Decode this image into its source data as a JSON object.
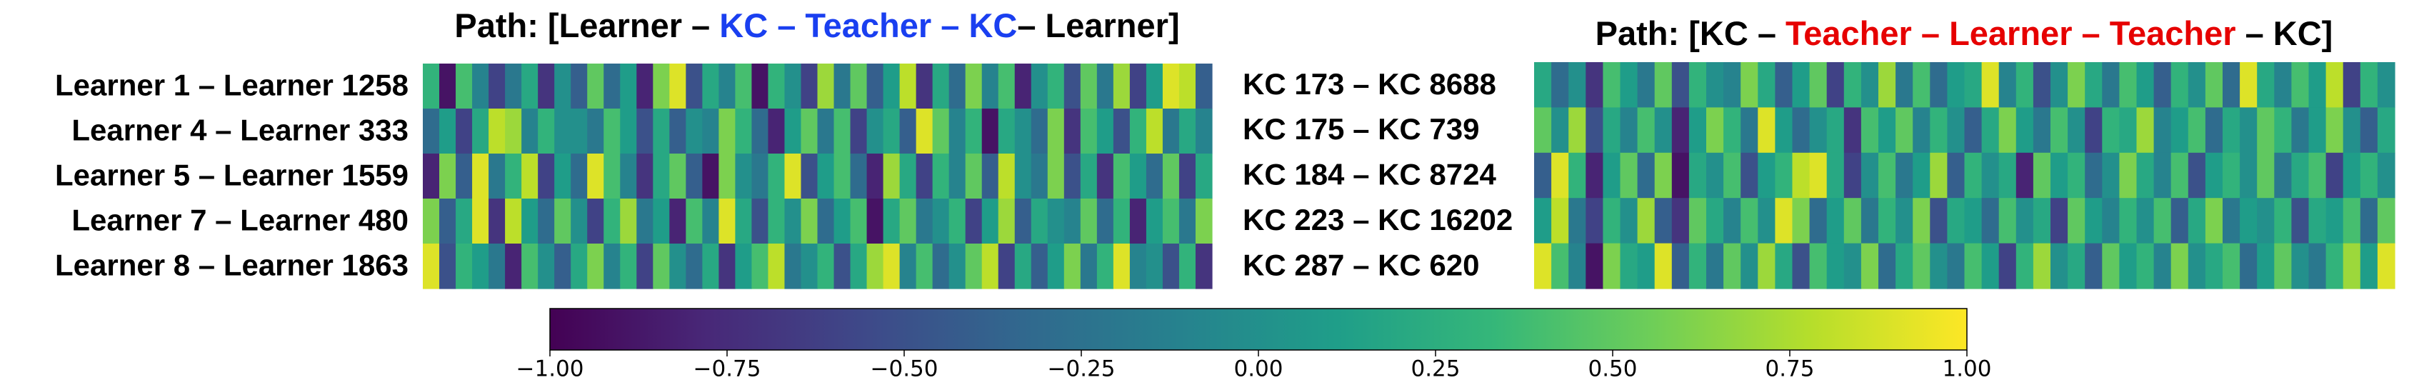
{
  "chart_data": [
    {
      "type": "heatmap",
      "title": [
        {
          "text": "Path: [Learner – ",
          "color": "#000000"
        },
        {
          "text": "KC – Teacher – KC",
          "color": "#1a3ff0"
        },
        {
          "text": "– Learner]",
          "color": "#000000"
        }
      ],
      "y_labels": [
        "Learner 1 – Learner 1258",
        "Learner 4 – Learner 333",
        "Learner 5 – Learner 1559",
        "Learner 7 – Learner 480",
        "Learner 8 – Learner 1863"
      ],
      "z": [
        [
          0.3,
          -0.9,
          0.4,
          -0.1,
          -0.6,
          -0.2,
          0.2,
          -0.7,
          0.0,
          -0.4,
          0.5,
          -0.3,
          0.1,
          -0.8,
          0.6,
          0.9,
          -0.5,
          0.2,
          -0.1,
          0.4,
          -0.9,
          0.3,
          0.0,
          -0.6,
          0.7,
          -0.2,
          0.5,
          -0.4,
          0.1,
          0.8,
          -0.7,
          0.2,
          -0.3,
          0.6,
          -0.1,
          0.4,
          -0.8,
          0.0,
          0.3,
          -0.5,
          0.5,
          -0.2,
          0.7,
          -0.6,
          0.1,
          0.9,
          0.8,
          -0.4
        ],
        [
          -0.3,
          0.1,
          -0.6,
          0.2,
          0.8,
          0.7,
          -0.1,
          0.3,
          0.0,
          0.0,
          -0.2,
          0.4,
          0.1,
          -0.5,
          0.2,
          -0.4,
          0.0,
          -0.1,
          0.6,
          0.3,
          -0.3,
          -0.8,
          0.1,
          0.5,
          -0.2,
          0.4,
          -0.6,
          0.0,
          0.2,
          -0.4,
          0.9,
          0.5,
          -0.1,
          0.3,
          -0.9,
          0.2,
          0.0,
          -0.3,
          0.6,
          -0.7,
          0.4,
          0.1,
          -0.5,
          0.3,
          0.8,
          -0.2,
          0.2,
          -0.1
        ],
        [
          -0.8,
          0.6,
          -0.4,
          0.9,
          -0.2,
          0.3,
          0.8,
          -0.6,
          0.1,
          -0.3,
          0.9,
          0.4,
          -0.1,
          -0.7,
          0.2,
          0.5,
          -0.4,
          -0.9,
          0.6,
          0.0,
          -0.2,
          0.3,
          0.9,
          -0.5,
          0.1,
          0.4,
          -0.3,
          -0.8,
          0.7,
          0.2,
          -0.6,
          0.3,
          -0.1,
          0.5,
          -0.4,
          0.8,
          0.0,
          -0.2,
          0.6,
          -0.5,
          0.2,
          -0.7,
          0.4,
          0.1,
          -0.3,
          0.5,
          -0.6,
          0.2
        ],
        [
          0.6,
          -0.4,
          0.2,
          0.9,
          -0.7,
          0.8,
          0.1,
          -0.3,
          0.5,
          0.0,
          -0.6,
          0.3,
          0.7,
          -0.2,
          0.1,
          -0.8,
          0.4,
          -0.1,
          0.9,
          0.2,
          -0.5,
          0.3,
          0.0,
          0.6,
          -0.3,
          0.1,
          0.4,
          -0.9,
          0.2,
          0.5,
          -0.2,
          0.0,
          0.3,
          -0.6,
          0.1,
          0.7,
          -0.4,
          0.2,
          0.0,
          -0.1,
          0.5,
          -0.3,
          0.3,
          -0.8,
          0.1,
          0.4,
          -0.2,
          0.6
        ],
        [
          0.9,
          -0.5,
          0.3,
          0.1,
          -0.2,
          -0.8,
          0.4,
          0.0,
          -0.4,
          0.2,
          0.6,
          -0.1,
          0.3,
          -0.6,
          0.5,
          0.0,
          -0.3,
          0.2,
          -0.7,
          0.1,
          0.4,
          0.8,
          -0.2,
          0.0,
          0.3,
          -0.5,
          0.2,
          0.7,
          0.9,
          -0.1,
          0.4,
          -0.3,
          0.0,
          0.5,
          0.8,
          -0.6,
          0.2,
          -0.4,
          0.1,
          0.6,
          -0.2,
          0.3,
          0.9,
          -0.1,
          0.0,
          -0.5,
          0.3,
          -0.7
        ]
      ],
      "zlim": [
        -1,
        1
      ],
      "colormap": "viridis"
    },
    {
      "type": "heatmap",
      "title": [
        {
          "text": "Path: [KC – ",
          "color": "#000000"
        },
        {
          "text": "Teacher – Learner – Teacher",
          "color": "#e60000"
        },
        {
          "text": " – KC]",
          "color": "#000000"
        }
      ],
      "y_labels": [
        "KC 173 – KC 8688",
        "KC 175 – KC 739",
        "KC 184 – KC 8724",
        "KC 223 – KC 16202",
        "KC 287 – KC 620"
      ],
      "z": [
        [
          0.2,
          -0.3,
          0.0,
          -0.7,
          0.4,
          0.1,
          -0.2,
          0.5,
          -0.5,
          0.3,
          0.0,
          -0.1,
          0.6,
          0.2,
          -0.4,
          0.1,
          0.5,
          -0.6,
          0.3,
          0.0,
          0.7,
          -0.2,
          0.4,
          -0.3,
          0.1,
          0.2,
          0.9,
          -0.1,
          0.3,
          -0.5,
          0.0,
          0.6,
          0.2,
          -0.2,
          0.4,
          0.1,
          -0.4,
          0.3,
          0.0,
          0.5,
          -0.3,
          0.9,
          0.2,
          -0.1,
          0.4,
          0.1,
          0.8,
          -0.6,
          0.3,
          0.0
        ],
        [
          0.5,
          0.0,
          0.7,
          -0.5,
          0.2,
          -0.1,
          0.4,
          0.0,
          -0.8,
          0.1,
          0.6,
          0.3,
          -0.2,
          0.9,
          0.1,
          -0.3,
          0.0,
          0.2,
          -0.7,
          0.4,
          0.1,
          0.5,
          -0.1,
          0.3,
          0.0,
          -0.4,
          0.2,
          0.6,
          0.1,
          -0.2,
          0.4,
          0.0,
          -0.6,
          0.3,
          0.2,
          0.7,
          -0.1,
          0.1,
          0.4,
          -0.3,
          0.2,
          0.0,
          0.5,
          0.3,
          -0.2,
          0.1,
          0.6,
          0.0,
          -0.4,
          0.2
        ],
        [
          -0.4,
          0.9,
          0.3,
          -0.8,
          0.1,
          0.5,
          -0.3,
          0.6,
          -0.9,
          0.2,
          0.0,
          0.4,
          -0.5,
          0.1,
          0.3,
          0.8,
          0.9,
          0.2,
          -0.6,
          0.0,
          0.4,
          -0.2,
          0.1,
          0.7,
          -0.4,
          0.3,
          0.0,
          0.2,
          -0.8,
          0.5,
          0.1,
          0.3,
          -0.3,
          0.0,
          0.6,
          0.2,
          -0.1,
          0.4,
          -0.5,
          0.1,
          0.3,
          0.0,
          0.5,
          -0.2,
          0.2,
          0.4,
          -0.6,
          0.1,
          0.3,
          0.0
        ],
        [
          0.1,
          0.8,
          -0.2,
          -0.6,
          0.3,
          0.0,
          0.7,
          -0.4,
          -0.7,
          0.5,
          0.2,
          -0.1,
          0.4,
          0.0,
          0.9,
          0.6,
          -0.3,
          0.1,
          0.5,
          -0.2,
          0.3,
          0.0,
          0.6,
          -0.5,
          0.2,
          0.1,
          -0.3,
          0.4,
          0.0,
          0.2,
          -0.6,
          0.5,
          0.1,
          -0.1,
          0.3,
          0.0,
          0.4,
          -0.4,
          0.2,
          0.6,
          -0.2,
          0.1,
          0.0,
          0.3,
          -0.5,
          0.2,
          0.1,
          0.4,
          -0.3,
          0.5
        ],
        [
          0.9,
          0.4,
          -0.1,
          -0.9,
          0.6,
          0.2,
          0.1,
          0.9,
          -0.4,
          0.3,
          -0.2,
          0.5,
          0.0,
          0.7,
          0.2,
          -0.5,
          0.4,
          0.1,
          0.0,
          0.6,
          -0.3,
          0.2,
          0.5,
          0.0,
          -0.2,
          0.4,
          0.1,
          -0.6,
          0.3,
          0.7,
          0.0,
          0.2,
          -0.4,
          0.5,
          0.1,
          0.3,
          -0.1,
          0.6,
          0.0,
          0.2,
          0.4,
          -0.3,
          0.1,
          0.5,
          0.0,
          -0.2,
          0.3,
          0.7,
          0.1,
          0.9
        ]
      ],
      "zlim": [
        -1,
        1
      ],
      "colormap": "viridis"
    },
    {
      "type": "colorbar",
      "zlim": [
        -1,
        1
      ],
      "colormap": "viridis",
      "ticks": [
        {
          "value": -1,
          "label": "−1.00"
        },
        {
          "value": -0.75,
          "label": "−0.75"
        },
        {
          "value": -0.5,
          "label": "−0.50"
        },
        {
          "value": -0.25,
          "label": "−0.25"
        },
        {
          "value": 0,
          "label": "0.00"
        },
        {
          "value": 0.25,
          "label": "0.25"
        },
        {
          "value": 0.5,
          "label": "0.50"
        },
        {
          "value": 0.75,
          "label": "0.75"
        },
        {
          "value": 1,
          "label": "1.00"
        }
      ]
    }
  ]
}
